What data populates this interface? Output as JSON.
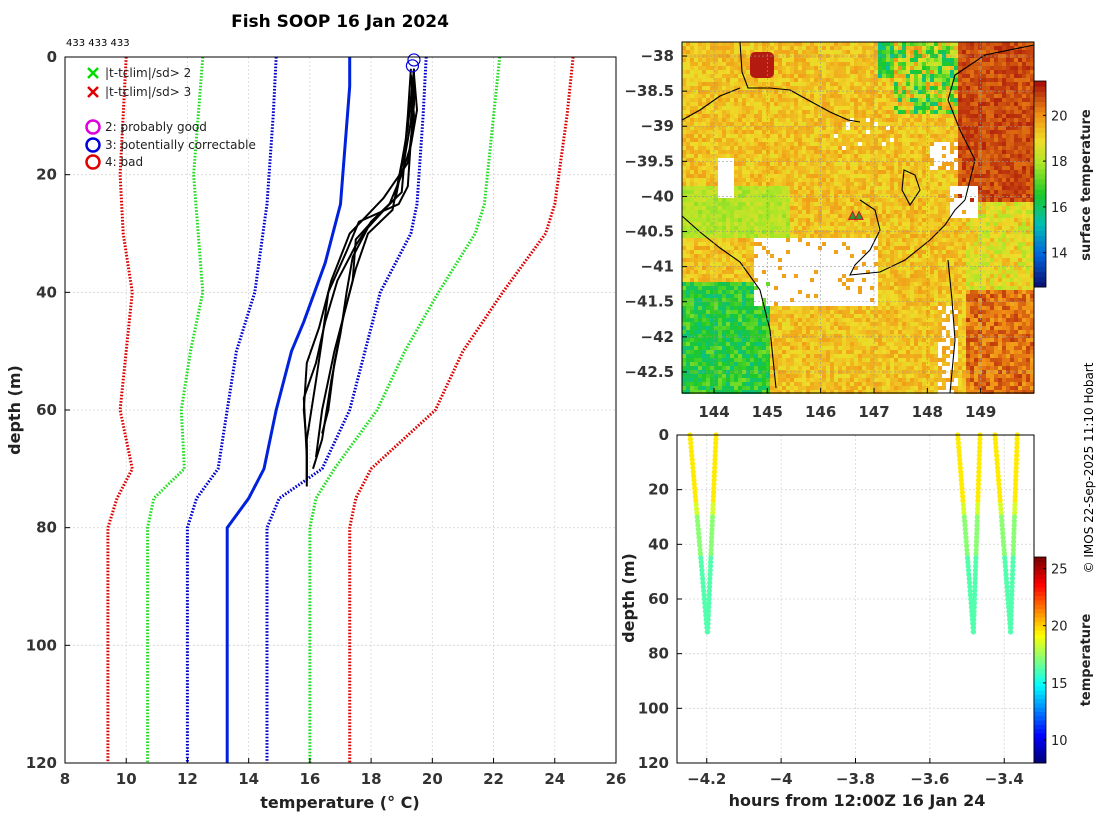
{
  "page": {
    "title": "Fish SOOP 16 Jan 2024",
    "ids_label": "433 433 433",
    "credit": "© IMOS 22-Sep-2025 11:10 Hobart"
  },
  "chart_data": [
    {
      "id": "profile",
      "type": "line",
      "xlabel": "temperature (° C)",
      "ylabel": "depth (m)",
      "xlim": [
        8,
        26
      ],
      "ylim": [
        120,
        0
      ],
      "xticks": [
        8,
        10,
        12,
        14,
        16,
        18,
        20,
        22,
        24,
        26
      ],
      "yticks": [
        0,
        20,
        40,
        60,
        80,
        100,
        120
      ],
      "grid": true,
      "legend": [
        {
          "marker": "x",
          "color": "#00dd00",
          "label": "|t-tclim|/sd> 2"
        },
        {
          "marker": "x",
          "color": "#e00000",
          "label": "|t-tclim|/sd> 3"
        },
        {
          "marker": "o",
          "color": "#dd00dd",
          "label": "2: probably good"
        },
        {
          "marker": "o",
          "color": "#0000dd",
          "label": "3: potentially correctable"
        },
        {
          "marker": "o",
          "color": "#e00000",
          "label": "4: bad"
        }
      ],
      "climatology": [
        {
          "name": "clim-3sd-low",
          "color": "#dd0000",
          "style": "dotted",
          "points": [
            [
              10.0,
              0
            ],
            [
              9.8,
              20
            ],
            [
              9.9,
              30
            ],
            [
              10.2,
              40
            ],
            [
              10.0,
              50
            ],
            [
              9.8,
              60
            ],
            [
              10.2,
              70
            ],
            [
              9.7,
              75
            ],
            [
              9.4,
              80
            ],
            [
              9.4,
              120
            ]
          ]
        },
        {
          "name": "clim-2sd-low",
          "color": "#22dd22",
          "style": "dotted",
          "points": [
            [
              12.5,
              0
            ],
            [
              12.2,
              20
            ],
            [
              12.5,
              40
            ],
            [
              12.1,
              50
            ],
            [
              11.8,
              60
            ],
            [
              11.9,
              70
            ],
            [
              10.9,
              75
            ],
            [
              10.7,
              80
            ],
            [
              10.7,
              120
            ]
          ]
        },
        {
          "name": "clim-1sd-low",
          "color": "#0000cc",
          "style": "dotted",
          "points": [
            [
              14.9,
              0
            ],
            [
              14.8,
              10
            ],
            [
              14.6,
              25
            ],
            [
              14.2,
              40
            ],
            [
              13.6,
              50
            ],
            [
              13.3,
              60
            ],
            [
              13.0,
              70
            ],
            [
              12.3,
              75
            ],
            [
              12.0,
              80
            ],
            [
              12.0,
              120
            ]
          ]
        },
        {
          "name": "clim-mean",
          "color": "#0022dd",
          "style": "solid",
          "points": [
            [
              17.3,
              0
            ],
            [
              17.3,
              5
            ],
            [
              17.0,
              25
            ],
            [
              16.5,
              35
            ],
            [
              15.8,
              45
            ],
            [
              15.4,
              50
            ],
            [
              14.9,
              60
            ],
            [
              14.5,
              70
            ],
            [
              14.0,
              75
            ],
            [
              13.3,
              80
            ],
            [
              13.3,
              120
            ]
          ]
        },
        {
          "name": "clim-1sd-high",
          "color": "#0000cc",
          "style": "dotted",
          "points": [
            [
              19.8,
              0
            ],
            [
              19.7,
              10
            ],
            [
              19.5,
              25
            ],
            [
              19.3,
              30
            ],
            [
              18.3,
              40
            ],
            [
              17.8,
              50
            ],
            [
              17.3,
              60
            ],
            [
              16.4,
              70
            ],
            [
              15.0,
              75
            ],
            [
              14.6,
              80
            ],
            [
              14.6,
              120
            ]
          ]
        },
        {
          "name": "clim-2sd-high",
          "color": "#22dd22",
          "style": "dotted",
          "points": [
            [
              22.2,
              0
            ],
            [
              22.0,
              10
            ],
            [
              21.7,
              25
            ],
            [
              21.4,
              30
            ],
            [
              20.2,
              40
            ],
            [
              19.1,
              50
            ],
            [
              18.2,
              60
            ],
            [
              16.8,
              70
            ],
            [
              16.2,
              75
            ],
            [
              16.0,
              80
            ],
            [
              16.0,
              120
            ]
          ]
        },
        {
          "name": "clim-3sd-high",
          "color": "#dd0000",
          "style": "dotted",
          "points": [
            [
              24.6,
              0
            ],
            [
              24.4,
              10
            ],
            [
              24.0,
              25
            ],
            [
              23.7,
              30
            ],
            [
              22.3,
              40
            ],
            [
              21.0,
              50
            ],
            [
              20.1,
              60
            ],
            [
              18.0,
              70
            ],
            [
              17.5,
              75
            ],
            [
              17.3,
              80
            ],
            [
              17.3,
              120
            ]
          ]
        }
      ],
      "profiles": [
        {
          "points": [
            [
              19.4,
              2
            ],
            [
              19.4,
              8
            ],
            [
              19.3,
              14
            ],
            [
              19.2,
              22
            ],
            [
              18.9,
              25
            ],
            [
              17.6,
              28
            ],
            [
              17.2,
              33
            ],
            [
              16.6,
              40
            ],
            [
              16.4,
              48
            ],
            [
              16.2,
              55
            ],
            [
              15.9,
              65
            ],
            [
              15.9,
              73
            ]
          ]
        },
        {
          "points": [
            [
              19.3,
              2
            ],
            [
              19.2,
              10
            ],
            [
              19.1,
              16
            ],
            [
              18.8,
              24
            ],
            [
              18.0,
              28
            ],
            [
              17.5,
              32
            ],
            [
              16.9,
              38
            ],
            [
              16.5,
              45
            ],
            [
              16.2,
              52
            ],
            [
              15.8,
              58
            ],
            [
              15.9,
              68
            ],
            [
              15.9,
              72
            ]
          ]
        },
        {
          "points": [
            [
              19.4,
              3
            ],
            [
              19.5,
              9
            ],
            [
              19.3,
              15
            ],
            [
              19.0,
              20
            ],
            [
              18.6,
              25
            ],
            [
              17.9,
              29
            ],
            [
              17.4,
              34
            ],
            [
              17.2,
              40
            ],
            [
              17.0,
              47
            ],
            [
              16.7,
              55
            ],
            [
              16.4,
              65
            ],
            [
              16.1,
              70
            ]
          ]
        },
        {
          "points": [
            [
              19.4,
              2
            ],
            [
              19.2,
              12
            ],
            [
              19.0,
              18
            ],
            [
              18.7,
              26
            ],
            [
              17.9,
              30
            ],
            [
              17.5,
              36
            ],
            [
              17.1,
              44
            ],
            [
              16.8,
              50
            ],
            [
              16.4,
              60
            ],
            [
              16.2,
              68
            ]
          ]
        },
        {
          "points": [
            [
              19.3,
              3
            ],
            [
              19.4,
              10
            ],
            [
              19.2,
              18
            ],
            [
              18.4,
              24
            ],
            [
              17.3,
              30
            ],
            [
              16.7,
              38
            ],
            [
              16.3,
              46
            ],
            [
              15.9,
              52
            ],
            [
              15.8,
              60
            ],
            [
              15.9,
              66
            ],
            [
              15.9,
              72
            ]
          ]
        },
        {
          "points": [
            [
              19.4,
              2
            ],
            [
              19.3,
              11
            ],
            [
              19.1,
              17
            ],
            [
              19.0,
              23
            ],
            [
              18.2,
              27
            ],
            [
              17.5,
              31
            ],
            [
              17.4,
              38
            ],
            [
              17.1,
              44
            ],
            [
              16.8,
              52
            ],
            [
              16.6,
              60
            ],
            [
              16.4,
              64
            ]
          ]
        }
      ],
      "flag_circles": [
        [
          19.4,
          0.5
        ],
        [
          19.35,
          1.5
        ]
      ]
    },
    {
      "id": "map",
      "type": "heatmap",
      "xlim": [
        143.4,
        150.0
      ],
      "ylim": [
        -42.8,
        -37.8
      ],
      "xticks": [
        144,
        145,
        146,
        147,
        148,
        149
      ],
      "yticks": [
        -38,
        -38.5,
        -39,
        -39.5,
        -40,
        -40.5,
        -41,
        -41.5,
        -42,
        -42.5
      ],
      "colorbar": {
        "label": "surface temperature",
        "range": [
          12.5,
          21.5
        ],
        "ticks": [
          14,
          16,
          18,
          20
        ]
      },
      "stations": [
        [
          146.6,
          -40.27
        ],
        [
          146.72,
          -40.27
        ]
      ],
      "grid": true
    },
    {
      "id": "timeseries",
      "type": "scatter",
      "xlabel": "hours from 12:00Z 16 Jan 24",
      "ylabel": "depth (m)",
      "xlim": [
        -4.28,
        -3.32
      ],
      "ylim": [
        120,
        0
      ],
      "xticks": [
        -4.2,
        -4,
        -3.8,
        -3.6,
        -3.4
      ],
      "yticks": [
        0,
        20,
        40,
        60,
        80,
        100,
        120
      ],
      "colorbar": {
        "label": "temperature",
        "range": [
          8,
          26
        ],
        "ticks": [
          10,
          15,
          20,
          25
        ]
      },
      "casts": [
        {
          "x_start": -4.245,
          "x_end": -4.175,
          "max_depth": 73
        },
        {
          "x_start": -3.525,
          "x_end": -3.465,
          "max_depth": 72
        },
        {
          "x_start": -3.425,
          "x_end": -3.365,
          "max_depth": 72
        }
      ],
      "grid": true
    }
  ]
}
